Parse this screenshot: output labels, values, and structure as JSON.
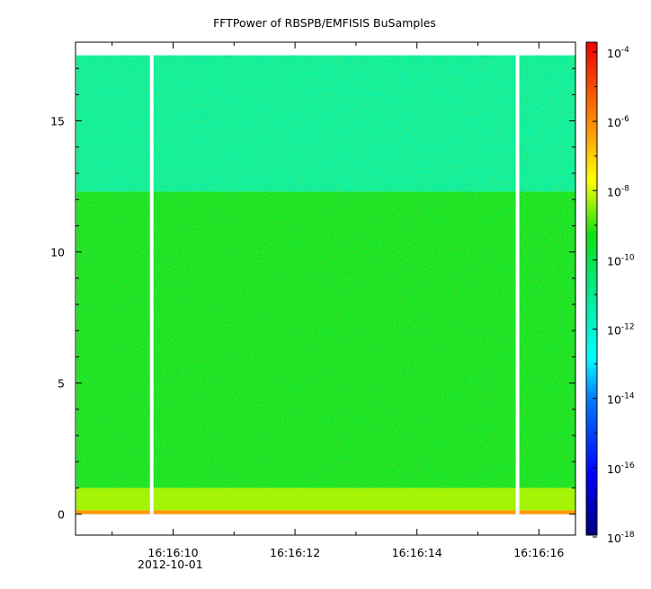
{
  "chart_data": {
    "type": "heatmap",
    "title": "FFTPower of RBSPB/EMFISIS  BuSamples",
    "x_axis": {
      "type": "time",
      "range": [
        "16:16:08.4",
        "16:16:16.6"
      ],
      "tick_labels": [
        "16:16:10",
        "16:16:12",
        "16:16:14",
        "16:16:16"
      ],
      "tick_values_s": [
        10,
        12,
        14,
        16
      ],
      "date_label": "2012-10-01"
    },
    "y_axis": {
      "range": [
        -0.8,
        18
      ],
      "tick_labels": [
        "0",
        "5",
        "10",
        "15"
      ],
      "tick_values": [
        0,
        5,
        10,
        15
      ]
    },
    "colorbar": {
      "scale": "log",
      "range": [
        1e-18,
        0.0001
      ],
      "tick_exponents": [
        -4,
        -6,
        -8,
        -10,
        -12,
        -14,
        -16,
        -18
      ]
    },
    "data_gaps_s": [
      9.65,
      15.65
    ],
    "frequency_bands": [
      {
        "y_range": [
          0.0,
          0.15
        ],
        "level_exponent": -6.5
      },
      {
        "y_range": [
          0.15,
          1.0
        ],
        "level_exponent": -8.5
      },
      {
        "y_range": [
          1.0,
          12.3
        ],
        "level_exponent": -9.8
      },
      {
        "y_range": [
          12.3,
          17.5
        ],
        "level_exponent": -11.5
      }
    ],
    "grid": false
  }
}
